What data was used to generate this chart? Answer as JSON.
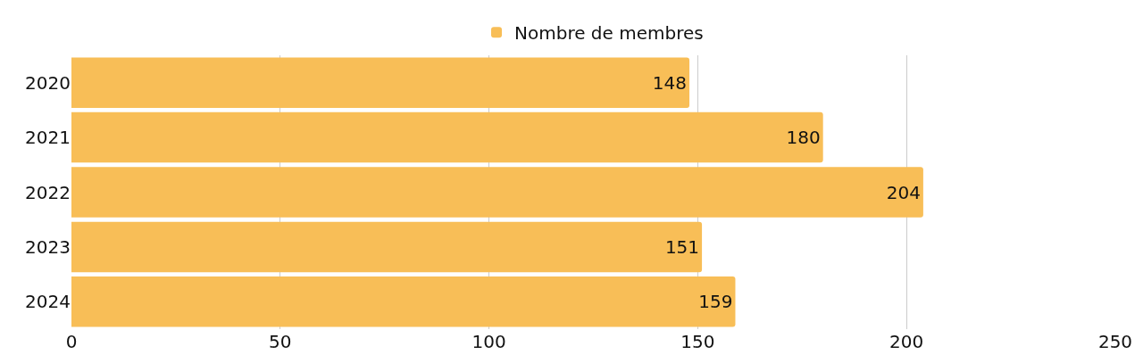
{
  "chart_data": {
    "type": "bar",
    "orientation": "horizontal",
    "categories": [
      "2020",
      "2021",
      "2022",
      "2023",
      "2024"
    ],
    "series": [
      {
        "name": "Nombre de membres",
        "color": "#f8be57",
        "values": [
          148,
          180,
          204,
          151,
          159
        ]
      }
    ],
    "xlim": [
      0,
      250
    ],
    "xticks": [
      0,
      50,
      100,
      150,
      200,
      250
    ],
    "grid": "x",
    "legend": "top",
    "data_labels": true
  }
}
